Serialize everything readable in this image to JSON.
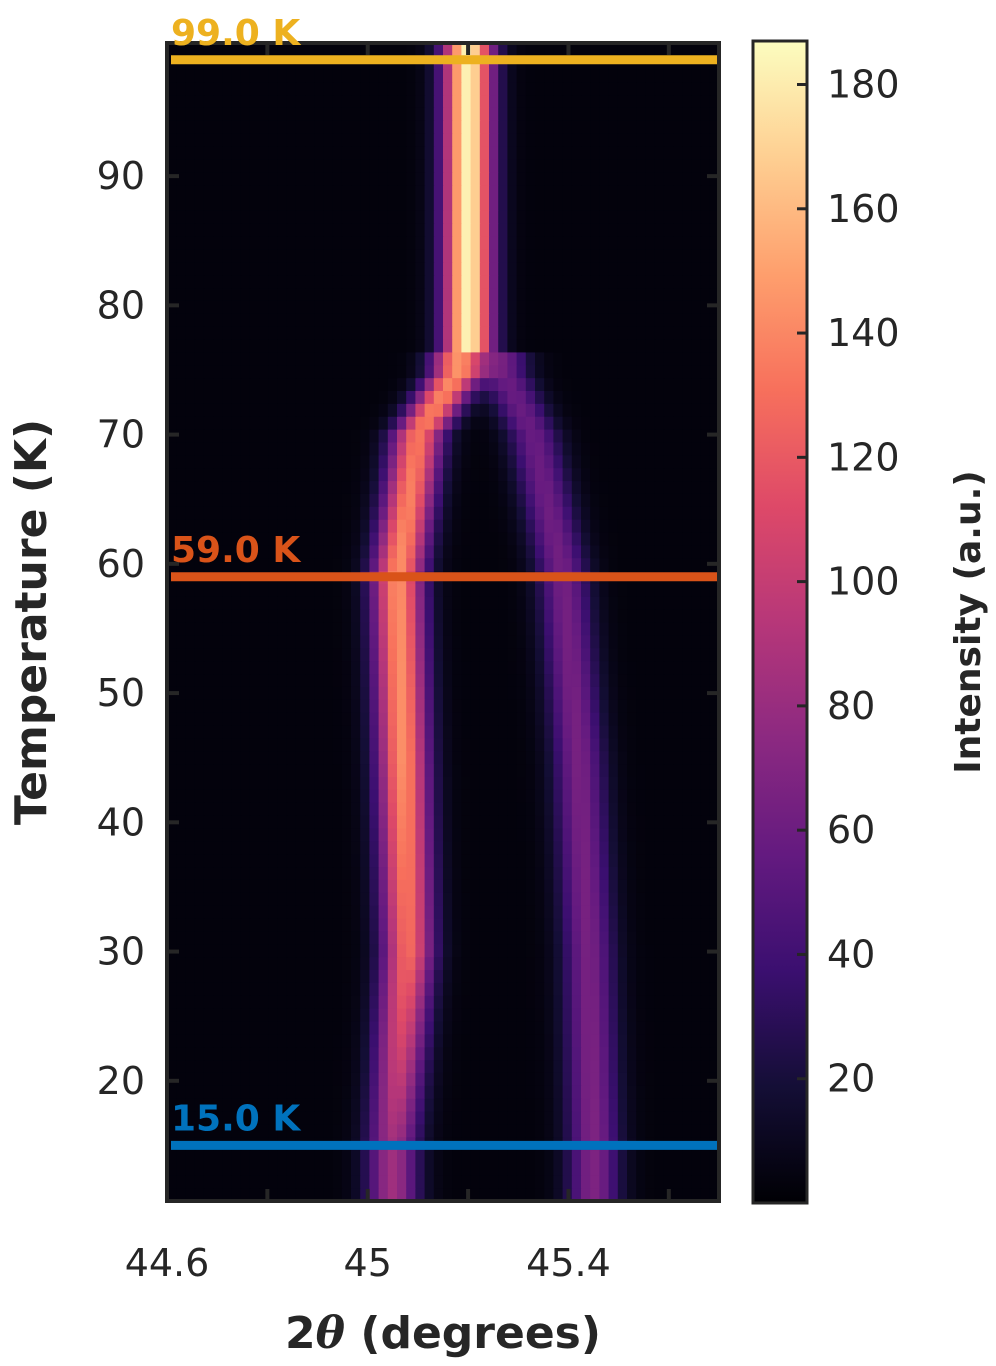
{
  "chart_data": {
    "type": "heatmap",
    "xlabel_prefix": "2",
    "xlabel_symbol": "θ",
    "xlabel_suffix": " (degrees)",
    "ylabel": "Temperature (K)",
    "colorbar_label": "Intensity (a.u.)",
    "colormap": "magma",
    "xlim": [
      44.6,
      45.7
    ],
    "ylim": [
      10.7,
      100.3
    ],
    "clim": [
      0,
      187
    ],
    "x_ticks": [
      44.6,
      44.8,
      45,
      45.2,
      45.4,
      45.6
    ],
    "x_tick_labels": [
      "44.6",
      "",
      "45",
      "",
      "45.4",
      ""
    ],
    "y_ticks": [
      20,
      30,
      40,
      50,
      60,
      70,
      80,
      90
    ],
    "y_tick_labels": [
      "20",
      "30",
      "40",
      "50",
      "60",
      "70",
      "80",
      "90"
    ],
    "cbar_ticks": [
      20,
      40,
      60,
      80,
      100,
      120,
      140,
      160,
      180
    ],
    "cbar_tick_labels": [
      "20",
      "40",
      "60",
      "80",
      "100",
      "120",
      "140",
      "160",
      "180"
    ],
    "cuts": [
      {
        "label": "99.0 K",
        "temperature": 99.0,
        "color": "#EDB120"
      },
      {
        "label": "59.0 K",
        "temperature": 59.0,
        "color": "#D95319"
      },
      {
        "label": "15.0 K",
        "temperature": 15.0,
        "color": "#0072BD"
      }
    ],
    "peaks_low_temperature": [
      {
        "T": 15,
        "left_center": 45.05,
        "right_center": 45.45,
        "left_intensity": 80,
        "right_intensity": 65
      },
      {
        "T": 30,
        "left_center": 45.08,
        "right_center": 45.44,
        "left_intensity": 125,
        "right_intensity": 62
      },
      {
        "T": 45,
        "left_center": 45.07,
        "right_center": 45.42,
        "left_intensity": 140,
        "right_intensity": 62
      },
      {
        "T": 59,
        "left_center": 45.06,
        "right_center": 45.39,
        "left_intensity": 140,
        "right_intensity": 60
      },
      {
        "T": 70,
        "left_center": 45.1,
        "right_center": 45.33,
        "left_intensity": 130,
        "right_intensity": 55
      },
      {
        "T": 75,
        "left_center": 45.18,
        "right_center": 45.27,
        "left_intensity": 140,
        "right_intensity": 55
      }
    ],
    "peak_high_temperature": {
      "T_range": [
        76,
        100
      ],
      "center": 45.2,
      "intensity": 180
    },
    "transition_temperature": 76
  }
}
